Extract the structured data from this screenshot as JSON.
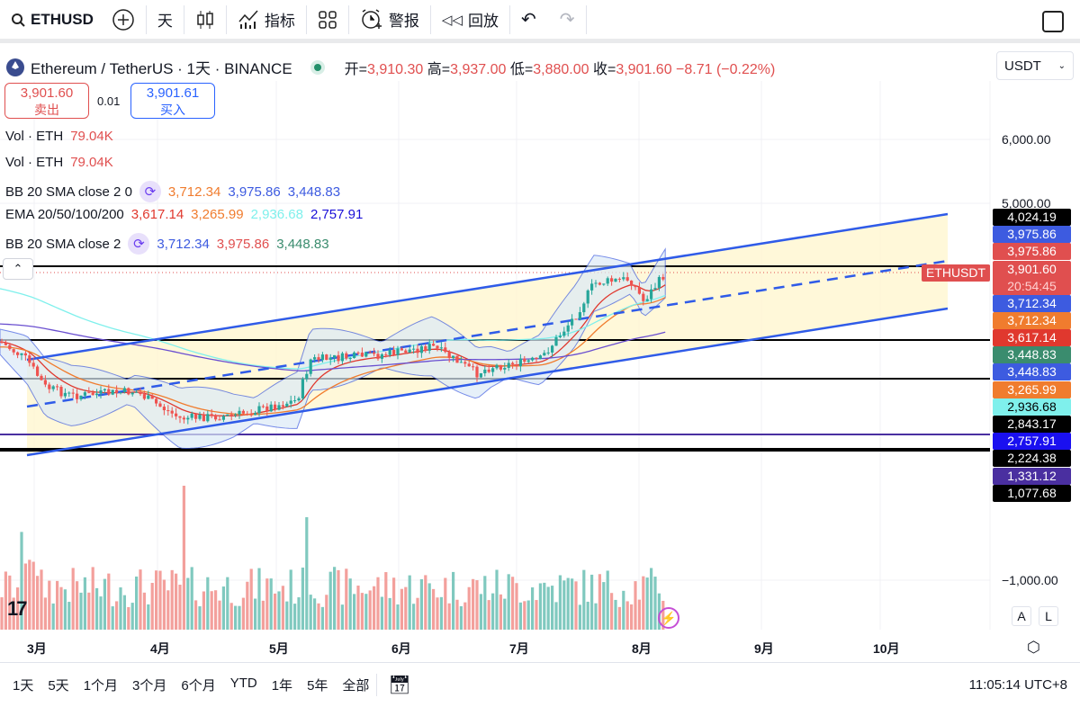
{
  "toolbar": {
    "symbol": "ETHUSD",
    "interval": "天",
    "indicators": "指标",
    "alert": "警报",
    "replay": "回放"
  },
  "legend": {
    "title": "Ethereum / TetherUS · 1天 · BINANCE",
    "open_label": "开=",
    "open": "3,910.30",
    "high_label": "高=",
    "high": "3,937.00",
    "low_label": "低=",
    "low": "3,880.00",
    "close_label": "收=",
    "close": "3,901.60",
    "change": "−8.71 (−0.22%)"
  },
  "currency": "USDT",
  "trade": {
    "sell_price": "3,901.60",
    "sell_label": "卖出",
    "spread": "0.01",
    "buy_price": "3,901.61",
    "buy_label": "买入"
  },
  "indicators": [
    {
      "name": "Vol · ETH",
      "values": [
        {
          "v": "79.04K",
          "color": "#e04f4f"
        }
      ]
    },
    {
      "name": "Vol · ETH",
      "values": [
        {
          "v": "79.04K",
          "color": "#e04f4f"
        }
      ]
    },
    {
      "name": "BB 20 SMA close 2 0",
      "cycle": true,
      "values": [
        {
          "v": "3,712.34",
          "color": "#f07c2e"
        },
        {
          "v": "3,975.86",
          "color": "#3d5be0"
        },
        {
          "v": "3,448.83",
          "color": "#3d5be0"
        }
      ]
    },
    {
      "name": "EMA 20/50/100/200",
      "values": [
        {
          "v": "3,617.14",
          "color": "#e0382e"
        },
        {
          "v": "3,265.99",
          "color": "#f07c2e"
        },
        {
          "v": "2,936.68",
          "color": "#7ff0ec"
        },
        {
          "v": "2,757.91",
          "color": "#1a10d8"
        }
      ]
    },
    {
      "name": "BB 20 SMA close 2",
      "cycle": true,
      "values": [
        {
          "v": "3,712.34",
          "color": "#3d5be0"
        },
        {
          "v": "3,975.86",
          "color": "#e04f4f"
        },
        {
          "v": "3,448.83",
          "color": "#3a8c6e"
        }
      ]
    }
  ],
  "price_axis": {
    "labels": [
      "6,000.00",
      "5,000.00",
      "−1,000.00"
    ]
  },
  "price_tags": [
    {
      "v": "4,024.19",
      "color": "#000000"
    },
    {
      "v": "3,975.86",
      "color": "#3d5be0"
    },
    {
      "v": "3,975.86",
      "color": "#e04f4f"
    },
    {
      "v": "3,901.60",
      "color": "#e04f4f",
      "sub": "20:54:45"
    },
    {
      "v": "3,712.34",
      "color": "#3d5be0"
    },
    {
      "v": "3,712.34",
      "color": "#f07c2e"
    },
    {
      "v": "3,617.14",
      "color": "#e0382e"
    },
    {
      "v": "3,448.83",
      "color": "#3a8c6e"
    },
    {
      "v": "3,448.83",
      "color": "#3d5be0"
    },
    {
      "v": "3,265.99",
      "color": "#f07c2e"
    },
    {
      "v": "2,936.68",
      "color": "#7ff0ec",
      "text": "#000000"
    },
    {
      "v": "2,843.17",
      "color": "#000000"
    },
    {
      "v": "2,757.91",
      "color": "#1a10f0"
    },
    {
      "v": "2,224.38",
      "color": "#000000"
    },
    {
      "v": "1,331.12",
      "color": "#4a2fa0"
    },
    {
      "v": "1,077.68",
      "color": "#000000"
    }
  ],
  "symbol_tag": "ETHUSDT",
  "time_axis": [
    "3月",
    "4月",
    "5月",
    "6月",
    "7月",
    "8月",
    "9月",
    "10月"
  ],
  "ranges": [
    "1天",
    "5天",
    "1个月",
    "3个月",
    "6个月",
    "YTD",
    "1年",
    "5年",
    "全部"
  ],
  "clock": "11:05:14 UTC+8",
  "scale_buttons": {
    "auto": "A",
    "log": "L"
  }
}
